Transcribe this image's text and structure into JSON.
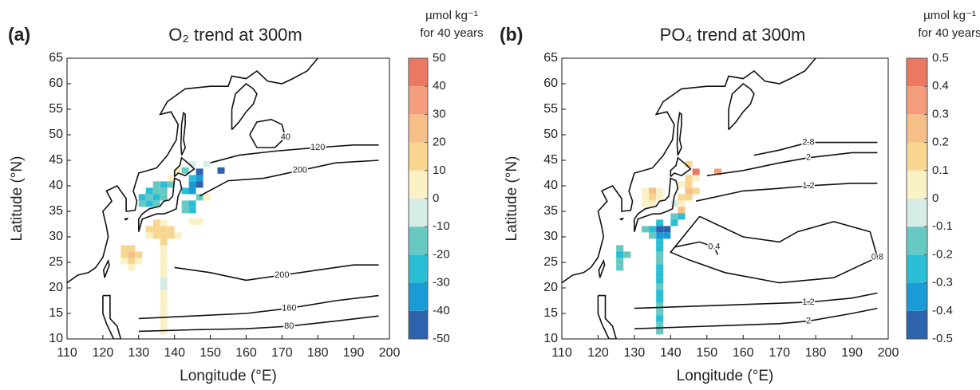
{
  "chart_data": [
    {
      "type": "map",
      "panel_label": "(a)",
      "title": "O₂ trend at 300m",
      "xlabel": "Longitude (°E)",
      "ylabel": "Latitude (°N)",
      "xlim": [
        110,
        200
      ],
      "xticks": [
        110,
        120,
        130,
        140,
        150,
        160,
        170,
        180,
        190,
        200
      ],
      "ylim": [
        10,
        65
      ],
      "yticks": [
        10,
        15,
        20,
        25,
        30,
        35,
        40,
        45,
        50,
        55,
        60,
        65
      ],
      "colorbar": {
        "title": [
          "µmol kg⁻¹",
          "for 40 years"
        ],
        "lim": [
          -50,
          50
        ],
        "ticks": [
          -50,
          -40,
          -30,
          -20,
          -10,
          0,
          10,
          20,
          30,
          40,
          50
        ],
        "colors": [
          "#2d62ac",
          "#1a9ad6",
          "#29bed6",
          "#66c9c2",
          "#d6ede6",
          "#fbf1c6",
          "#f8d690",
          "#f6bf88",
          "#f39d7c",
          "#ec7862"
        ]
      },
      "cells": {
        "x": [
          137,
          137,
          137,
          137,
          137,
          137,
          137,
          137,
          137,
          137,
          137,
          137,
          137,
          137,
          137,
          137,
          137,
          137,
          126,
          128,
          126,
          128,
          126,
          128,
          130,
          128,
          130,
          133,
          135,
          135,
          139,
          139,
          141,
          133,
          135,
          131,
          133,
          135,
          131,
          133,
          135,
          137,
          133,
          135,
          137,
          137,
          139,
          135,
          139,
          141,
          143,
          145,
          145,
          147,
          147,
          147,
          145,
          143,
          145,
          145,
          143,
          147,
          145,
          147,
          149,
          143,
          153,
          145,
          149
        ],
        "y": [
          11.5,
          12.75,
          14,
          15.25,
          16.5,
          17.75,
          19,
          20.25,
          21.5,
          22.75,
          24,
          25.25,
          26.5,
          27.75,
          29,
          30.25,
          31.5,
          32.75,
          27.75,
          27.75,
          26.5,
          26.5,
          25.25,
          25.25,
          25.25,
          24,
          26.5,
          31.5,
          31.5,
          32.75,
          31.5,
          30.25,
          30.25,
          30.25,
          30.25,
          36.5,
          36.5,
          36.5,
          37.75,
          37.75,
          37.75,
          37.75,
          39,
          39,
          39,
          40.25,
          40.25,
          40.25,
          41.5,
          43,
          39,
          39,
          40.25,
          40.25,
          41.5,
          42.75,
          41.5,
          36.5,
          36.5,
          35.25,
          35.25,
          37.75,
          33,
          33,
          37.75,
          43,
          43,
          44.25,
          44.25
        ],
        "values": [
          5,
          5,
          5,
          5,
          5,
          5,
          5,
          -5,
          -5,
          5,
          5,
          5,
          5,
          5,
          15,
          15,
          15,
          5,
          15,
          15,
          15,
          25,
          5,
          15,
          5,
          5,
          15,
          15,
          15,
          15,
          15,
          15,
          5,
          5,
          15,
          -15,
          -25,
          -15,
          -25,
          -15,
          -25,
          -15,
          -25,
          -15,
          -15,
          -25,
          -15,
          -15,
          5,
          5,
          -25,
          -35,
          -35,
          -45,
          -35,
          -45,
          -25,
          -15,
          -25,
          -25,
          -15,
          -15,
          5,
          5,
          5,
          -15,
          -45,
          -5,
          -5
        ]
      },
      "contours": [
        {
          "level": 40,
          "x": [
            161,
            163,
            167,
            170,
            171,
            168,
            163,
            161
          ],
          "y": [
            50,
            52.5,
            53,
            52,
            49.5,
            47.5,
            47.5,
            50
          ]
        },
        {
          "level": 120,
          "x": [
            150,
            158,
            168,
            180,
            190,
            197
          ],
          "y": [
            44.5,
            46,
            46.8,
            47.5,
            48,
            48
          ]
        },
        {
          "level": 200,
          "x": [
            147,
            155,
            165,
            175,
            185,
            197
          ],
          "y": [
            38,
            41,
            41.5,
            43,
            44.5,
            45
          ]
        },
        {
          "level": 200,
          "x": [
            140,
            150,
            160,
            170,
            180,
            190,
            197
          ],
          "y": [
            24,
            23,
            21.5,
            22.5,
            23.5,
            24.5,
            24.5
          ]
        },
        {
          "level": 160,
          "x": [
            130,
            145,
            160,
            172,
            185,
            197
          ],
          "y": [
            14,
            14.5,
            15,
            16,
            17.5,
            18.5
          ]
        },
        {
          "level": 80,
          "x": [
            130,
            145,
            160,
            172,
            185,
            197
          ],
          "y": [
            11.5,
            11.8,
            12,
            12.5,
            13.5,
            14.5
          ]
        }
      ]
    },
    {
      "type": "map",
      "panel_label": "(b)",
      "title": "PO₄ trend at 300m",
      "xlabel": "Longitude (°E)",
      "ylabel": "Latitude (°N)",
      "xlim": [
        110,
        200
      ],
      "xticks": [
        110,
        120,
        130,
        140,
        150,
        160,
        170,
        180,
        190,
        200
      ],
      "ylim": [
        10,
        65
      ],
      "yticks": [
        10,
        15,
        20,
        25,
        30,
        35,
        40,
        45,
        50,
        55,
        60,
        65
      ],
      "colorbar": {
        "title": [
          "µmol kg⁻¹",
          "for 40 years"
        ],
        "lim": [
          -0.5,
          0.5
        ],
        "ticks": [
          -0.5,
          -0.4,
          -0.3,
          -0.2,
          -0.1,
          0,
          0.1,
          0.2,
          0.3,
          0.4,
          0.5
        ],
        "colors": [
          "#2d62ac",
          "#1a9ad6",
          "#29bed6",
          "#66c9c2",
          "#d6ede6",
          "#fbf1c6",
          "#f8d690",
          "#f6bf88",
          "#f39d7c",
          "#ec7862"
        ]
      },
      "cells": {
        "x": [
          137,
          137,
          137,
          137,
          137,
          137,
          137,
          137,
          137,
          137,
          137,
          137,
          137,
          137,
          137,
          137,
          137,
          137,
          126,
          126,
          128,
          126,
          126,
          133,
          135,
          135,
          139,
          139,
          133,
          135,
          133,
          135,
          135,
          133,
          137,
          137,
          143,
          141,
          143,
          141,
          143,
          145,
          145,
          147,
          143,
          145,
          145,
          147,
          147,
          145,
          153,
          143,
          141
        ],
        "y": [
          11.5,
          12.75,
          14,
          15.25,
          16.5,
          17.75,
          19,
          20.25,
          21.5,
          22.75,
          24,
          25.25,
          26.5,
          27.75,
          29,
          30.25,
          31.5,
          32.75,
          27.75,
          26.5,
          26.5,
          25.25,
          24,
          31.5,
          31.5,
          30.25,
          31.5,
          30.25,
          36.5,
          36.5,
          37.75,
          37.75,
          39,
          39,
          39,
          37.75,
          35.25,
          34,
          34,
          32.75,
          37.75,
          37.75,
          39,
          39,
          40.25,
          40.25,
          41.5,
          41.5,
          42.75,
          44.25,
          42.75,
          36.5,
          36.5
        ],
        "values": [
          -0.15,
          -0.15,
          -0.25,
          -0.15,
          -0.15,
          -0.25,
          -0.25,
          -0.15,
          -0.25,
          -0.25,
          -0.25,
          -0.15,
          -0.15,
          -0.25,
          -0.25,
          -0.35,
          -0.45,
          -0.25,
          -0.15,
          -0.25,
          -0.15,
          -0.15,
          -0.15,
          -0.15,
          -0.25,
          -0.15,
          -0.45,
          -0.35,
          0.05,
          0.05,
          0.05,
          0.15,
          0.25,
          0.05,
          0.05,
          0.05,
          0.25,
          -0.15,
          -0.25,
          -0.25,
          0.15,
          0.15,
          0.25,
          0.15,
          0.05,
          0.15,
          0.15,
          0.05,
          0.45,
          0.15,
          0.35,
          0.05,
          -0.05
        ]
      },
      "contours": [
        {
          "level": 2.8,
          "x": [
            163,
            170,
            178,
            190,
            197
          ],
          "y": [
            46,
            47,
            48.5,
            48.5,
            48.5
          ]
        },
        {
          "level": 2,
          "x": [
            150,
            160,
            170,
            178,
            190,
            197
          ],
          "y": [
            42,
            43,
            44.5,
            45.5,
            46.5,
            46.5
          ]
        },
        {
          "level": 1.2,
          "x": [
            147,
            160,
            170,
            178,
            190,
            197
          ],
          "y": [
            37,
            39,
            39.5,
            40,
            40.5,
            40.5
          ]
        },
        {
          "level": 0.8,
          "x": [
            148,
            160,
            170,
            175,
            185,
            195,
            197,
            185,
            170,
            155,
            145,
            140,
            148
          ],
          "y": [
            34,
            30,
            29,
            31,
            33,
            31,
            26,
            22,
            21,
            23,
            25.5,
            27,
            34
          ]
        },
        {
          "level": 0.4,
          "x": [
            141,
            148,
            152,
            153
          ],
          "y": [
            28,
            29,
            28,
            26.5
          ]
        },
        {
          "level": 1.2,
          "x": [
            130,
            150,
            170,
            178,
            190,
            197
          ],
          "y": [
            16,
            16.5,
            17,
            17.2,
            18,
            19
          ]
        },
        {
          "level": 2,
          "x": [
            130,
            150,
            170,
            178,
            190,
            197
          ],
          "y": [
            12,
            12.5,
            13,
            13.5,
            15,
            16
          ]
        }
      ]
    }
  ]
}
